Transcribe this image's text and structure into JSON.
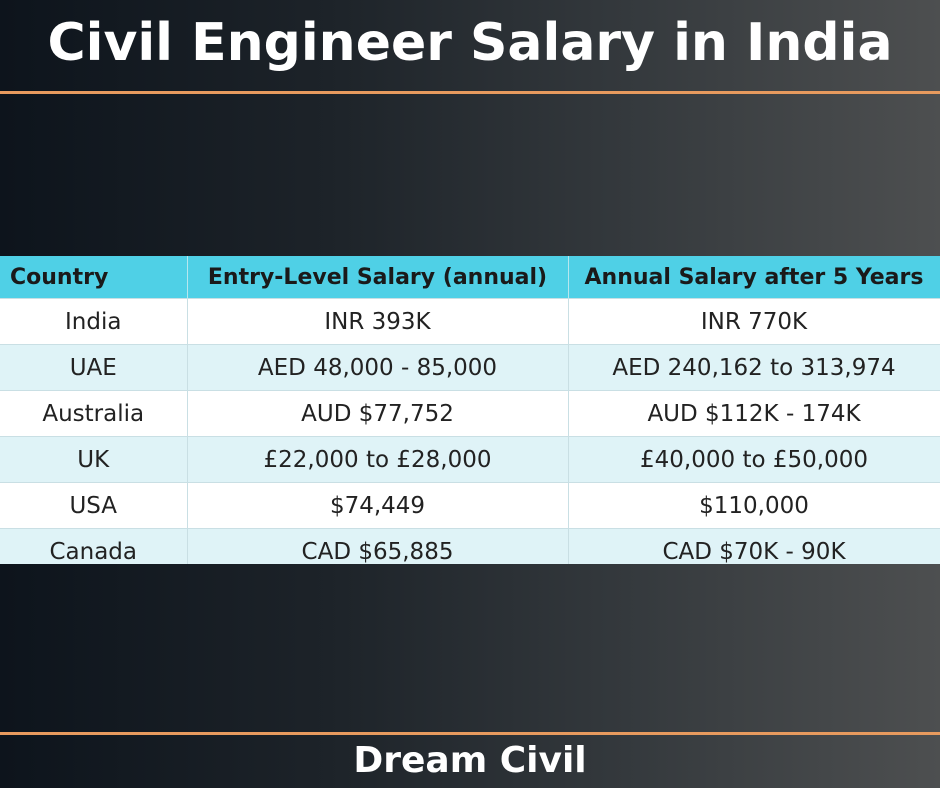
{
  "title": "Civil Engineer Salary in India",
  "footer": "Dream Civil",
  "colors": {
    "accent_rule": "#e79a5e",
    "header_bg": "#4fd0e6",
    "alt_row_bg": "#dff3f7"
  },
  "table": {
    "headers": [
      "Country",
      "Entry-Level Salary (annual)",
      "Annual Salary after 5 Years"
    ],
    "rows": [
      [
        "India",
        "INR 393K",
        "INR 770K"
      ],
      [
        "UAE",
        "AED 48,000 - 85,000",
        "AED 240,162 to 313,974"
      ],
      [
        "Australia",
        "AUD $77,752",
        "AUD $112K - 174K"
      ],
      [
        "UK",
        "£22,000 to £28,000",
        "£40,000 to £50,000"
      ],
      [
        "USA",
        "$74,449",
        "$110,000"
      ],
      [
        "Canada",
        "CAD $65,885",
        "CAD $70K - 90K"
      ]
    ]
  }
}
